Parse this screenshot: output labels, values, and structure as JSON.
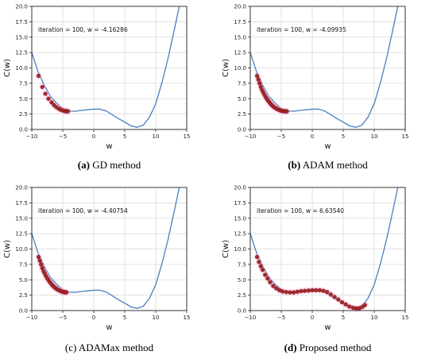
{
  "chart_data": [
    {
      "type": "line",
      "panel_label": "(a)",
      "caption": "GD method",
      "annotation": "iteration = 100, w = -4.16286",
      "xlabel": "w",
      "ylabel": "C(w)",
      "xlim": [
        -10,
        15
      ],
      "ylim": [
        0,
        20
      ],
      "xticks": [
        "−10",
        "−5",
        "0",
        "5",
        "10",
        "15"
      ],
      "yticks": [
        "0.0",
        "2.5",
        "5.0",
        "7.5",
        "10.0",
        "12.5",
        "15.0",
        "17.5",
        "20.0"
      ],
      "grid": true,
      "series": [
        {
          "kind": "curve",
          "color": "#4a7fc0",
          "x": [
            -10,
            -9,
            -8,
            -7,
            -6,
            -5,
            -4,
            -3,
            -2,
            -1,
            0,
            1,
            2,
            3,
            4,
            5,
            6,
            7,
            8,
            9,
            10,
            11,
            12,
            13,
            13.8
          ],
          "y": [
            12.5,
            9.4,
            7.2,
            5.4,
            4.3,
            3.4,
            3.0,
            2.95,
            3.1,
            3.2,
            3.3,
            3.3,
            3.0,
            2.4,
            1.75,
            1.2,
            0.6,
            0.35,
            0.7,
            2.0,
            4.2,
            7.6,
            11.6,
            16.2,
            20.0
          ]
        },
        {
          "kind": "markers",
          "color": "#a52a2a",
          "x": [
            -8.9,
            -8.3,
            -7.8,
            -7.3,
            -6.8,
            -6.4,
            -6.0,
            -5.6,
            -5.3,
            -5.0,
            -4.7,
            -4.5,
            -4.3,
            -4.16
          ],
          "y": [
            8.7,
            6.9,
            5.8,
            5.0,
            4.4,
            3.95,
            3.6,
            3.35,
            3.2,
            3.1,
            3.0,
            2.97,
            2.96,
            2.95
          ]
        }
      ]
    },
    {
      "type": "line",
      "panel_label": "(b)",
      "caption": "ADAM method",
      "annotation": "iteration = 100, w = -4.09935",
      "xlabel": "w",
      "ylabel": "C(w)",
      "xlim": [
        -10,
        15
      ],
      "ylim": [
        0,
        20
      ],
      "xticks": [
        "−10",
        "−5",
        "0",
        "5",
        "10",
        "15"
      ],
      "yticks": [
        "0.0",
        "2.5",
        "5.0",
        "7.5",
        "10.0",
        "12.5",
        "15.0",
        "17.5",
        "20.0"
      ],
      "grid": true,
      "series": [
        {
          "kind": "curve",
          "color": "#4a7fc0",
          "x": [
            -10,
            -9,
            -8,
            -7,
            -6,
            -5,
            -4,
            -3,
            -2,
            -1,
            0,
            1,
            2,
            3,
            4,
            5,
            6,
            7,
            8,
            9,
            10,
            11,
            12,
            13,
            13.8
          ],
          "y": [
            12.5,
            9.4,
            7.2,
            5.4,
            4.3,
            3.4,
            3.0,
            2.95,
            3.1,
            3.2,
            3.3,
            3.3,
            3.0,
            2.4,
            1.75,
            1.2,
            0.6,
            0.35,
            0.7,
            2.0,
            4.2,
            7.6,
            11.6,
            16.2,
            20.0
          ]
        },
        {
          "kind": "markers",
          "color": "#a52a2a",
          "x": [
            -8.9,
            -8.7,
            -8.5,
            -8.3,
            -8.1,
            -7.9,
            -7.7,
            -7.5,
            -7.3,
            -7.1,
            -6.9,
            -6.7,
            -6.5,
            -6.3,
            -6.1,
            -5.9,
            -5.7,
            -5.5,
            -5.3,
            -5.1,
            -4.9,
            -4.7,
            -4.5,
            -4.3,
            -4.1
          ],
          "y": [
            8.7,
            8.1,
            7.5,
            6.9,
            6.4,
            6.0,
            5.6,
            5.25,
            4.95,
            4.65,
            4.4,
            4.15,
            3.95,
            3.75,
            3.6,
            3.45,
            3.35,
            3.25,
            3.15,
            3.08,
            3.02,
            2.98,
            2.96,
            2.95,
            2.95
          ]
        }
      ]
    },
    {
      "type": "line",
      "panel_label": "(c)",
      "caption": "ADAMax method",
      "annotation": "iteration = 100, w = -4.40754",
      "xlabel": "w",
      "ylabel": "C(w)",
      "xlim": [
        -10,
        15
      ],
      "ylim": [
        0,
        20
      ],
      "xticks": [
        "−10",
        "−5",
        "0",
        "5",
        "10",
        "15"
      ],
      "yticks": [
        "0.0",
        "2.5",
        "5.0",
        "7.5",
        "10.0",
        "12.5",
        "15.0",
        "17.5",
        "20.0"
      ],
      "grid": true,
      "series": [
        {
          "kind": "curve",
          "color": "#4a7fc0",
          "x": [
            -10,
            -9,
            -8,
            -7,
            -6,
            -5,
            -4,
            -3,
            -2,
            -1,
            0,
            1,
            2,
            3,
            4,
            5,
            6,
            7,
            8,
            9,
            10,
            11,
            12,
            13,
            13.8
          ],
          "y": [
            12.5,
            9.4,
            7.2,
            5.4,
            4.3,
            3.4,
            3.0,
            2.95,
            3.1,
            3.2,
            3.3,
            3.3,
            3.0,
            2.4,
            1.75,
            1.2,
            0.6,
            0.35,
            0.7,
            2.0,
            4.2,
            7.6,
            11.6,
            16.2,
            20.0
          ]
        },
        {
          "kind": "markers",
          "color": "#a52a2a",
          "x": [
            -8.9,
            -8.7,
            -8.5,
            -8.3,
            -8.1,
            -7.9,
            -7.7,
            -7.5,
            -7.3,
            -7.1,
            -6.9,
            -6.7,
            -6.5,
            -6.3,
            -6.1,
            -5.9,
            -5.7,
            -5.5,
            -5.3,
            -5.1,
            -4.9,
            -4.7,
            -4.55,
            -4.41
          ],
          "y": [
            8.7,
            8.1,
            7.5,
            6.9,
            6.4,
            6.0,
            5.6,
            5.25,
            4.95,
            4.65,
            4.4,
            4.15,
            3.95,
            3.75,
            3.6,
            3.45,
            3.35,
            3.25,
            3.15,
            3.08,
            3.02,
            2.98,
            2.96,
            2.95
          ]
        }
      ]
    },
    {
      "type": "line",
      "panel_label": "(d)",
      "caption": "Proposed method",
      "annotation": "iteration = 100, w = 6.63540",
      "xlabel": "w",
      "ylabel": "C(w)",
      "xlim": [
        -10,
        15
      ],
      "ylim": [
        0,
        20
      ],
      "xticks": [
        "−10",
        "−5",
        "0",
        "5",
        "10",
        "15"
      ],
      "yticks": [
        "0.0",
        "2.5",
        "5.0",
        "7.5",
        "10.0",
        "12.5",
        "15.0",
        "17.5",
        "20.0"
      ],
      "grid": true,
      "series": [
        {
          "kind": "curve",
          "color": "#4a7fc0",
          "x": [
            -10,
            -9,
            -8,
            -7,
            -6,
            -5,
            -4,
            -3,
            -2,
            -1,
            0,
            1,
            2,
            3,
            4,
            5,
            6,
            7,
            8,
            9,
            10,
            11,
            12,
            13,
            13.8
          ],
          "y": [
            12.5,
            9.4,
            7.2,
            5.4,
            4.3,
            3.4,
            3.0,
            2.95,
            3.1,
            3.2,
            3.3,
            3.3,
            3.0,
            2.4,
            1.75,
            1.2,
            0.6,
            0.35,
            0.7,
            2.0,
            4.2,
            7.6,
            11.6,
            16.2,
            20.0
          ]
        },
        {
          "kind": "markers",
          "color": "#a52a2a",
          "x": [
            -8.9,
            -8.6,
            -8.3,
            -8.0,
            -7.6,
            -7.2,
            -6.8,
            -6.3,
            -5.8,
            -5.3,
            -4.8,
            -4.2,
            -3.6,
            -3.0,
            -2.4,
            -1.8,
            -1.2,
            -0.6,
            0.0,
            0.6,
            1.2,
            1.8,
            2.4,
            3.0,
            3.6,
            4.2,
            4.8,
            5.4,
            6.0,
            6.6,
            7.1,
            7.6,
            8.1,
            8.5
          ],
          "y": [
            8.7,
            7.9,
            7.2,
            6.6,
            5.8,
            5.2,
            4.6,
            4.0,
            3.6,
            3.3,
            3.1,
            3.0,
            2.95,
            2.95,
            3.05,
            3.15,
            3.2,
            3.25,
            3.3,
            3.3,
            3.3,
            3.2,
            3.0,
            2.6,
            2.2,
            1.8,
            1.35,
            1.0,
            0.65,
            0.45,
            0.35,
            0.38,
            0.6,
            0.9
          ]
        }
      ]
    }
  ]
}
